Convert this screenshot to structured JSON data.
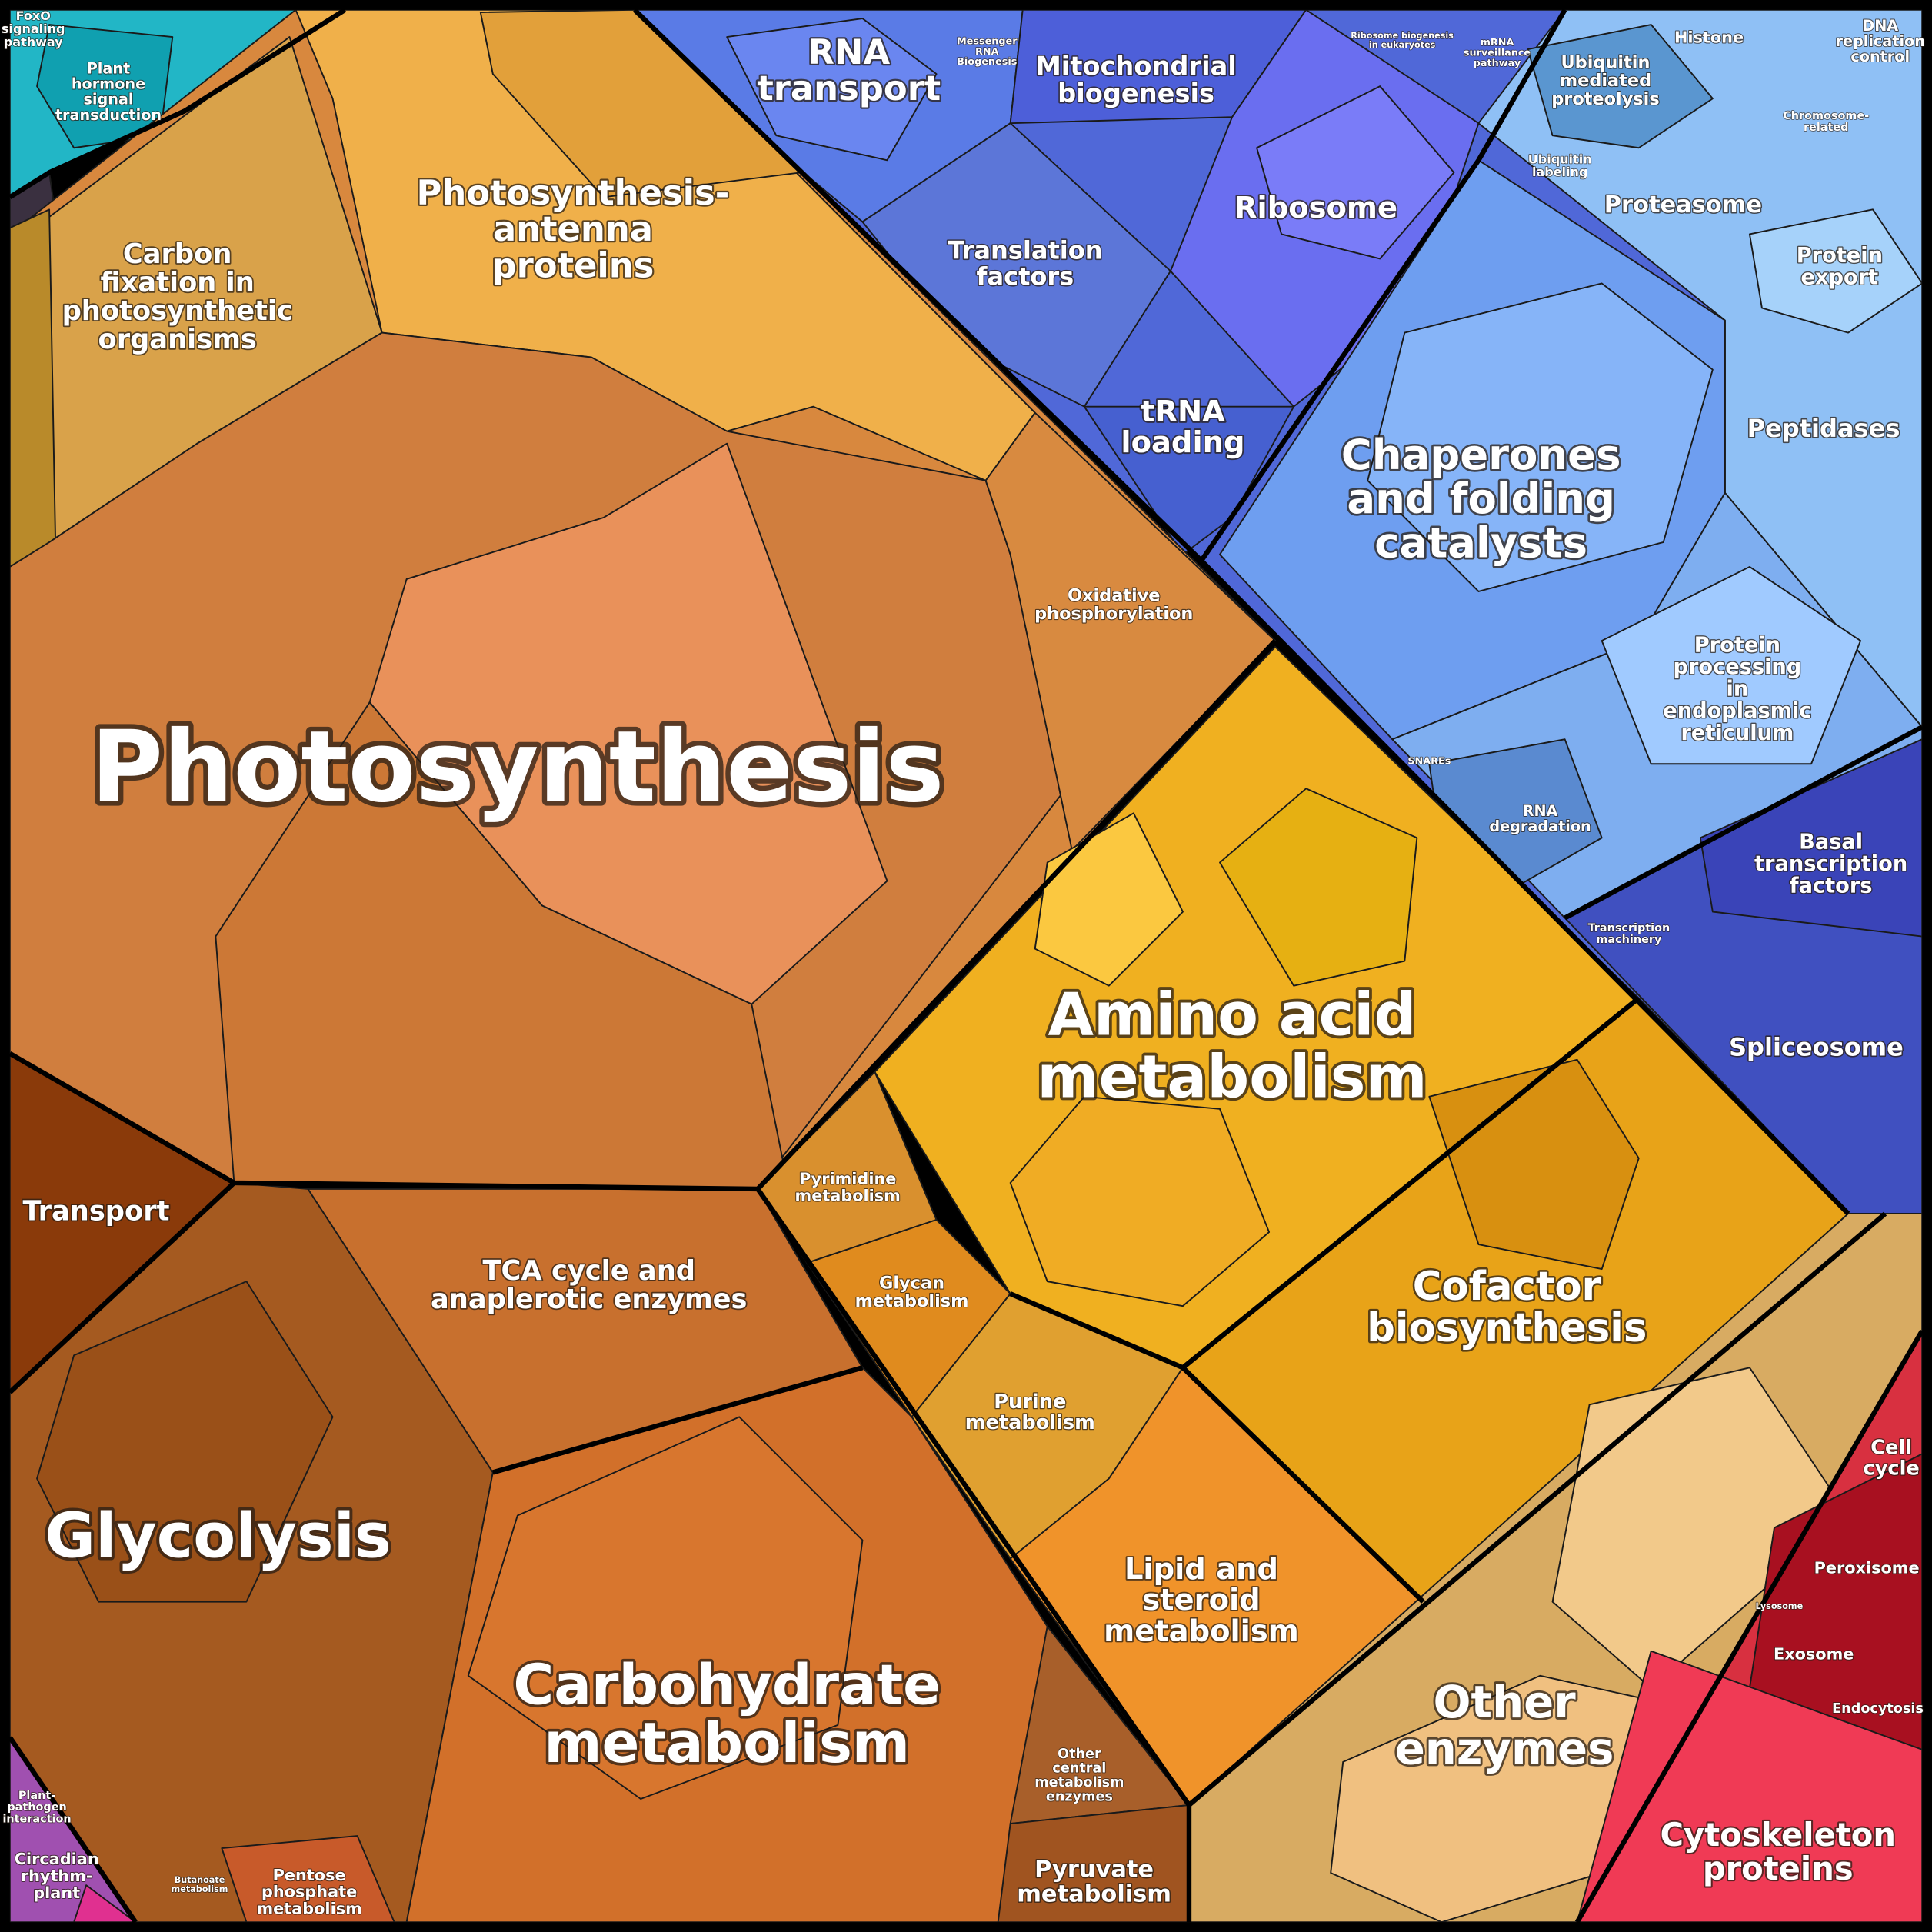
{
  "regions": [
    {
      "lines": [
        "Photosynthesis"
      ]
    },
    {
      "lines": [
        "Glycolysis"
      ]
    },
    {
      "lines": [
        "Carbohydrate",
        "metabolism"
      ]
    },
    {
      "lines": [
        "Amino acid",
        "metabolism"
      ]
    },
    {
      "lines": [
        "Chaperones",
        "and folding",
        "catalysts"
      ]
    },
    {
      "lines": [
        "Photosynthesis-",
        "antenna",
        "proteins"
      ]
    },
    {
      "lines": [
        "Carbon",
        "fixation in",
        "photosynthetic",
        "organisms"
      ]
    },
    {
      "lines": [
        "RNA",
        "transport"
      ]
    },
    {
      "lines": [
        "Mitochondrial",
        "biogenesis"
      ]
    },
    {
      "lines": [
        "Ribosome"
      ]
    },
    {
      "lines": [
        "Translation",
        "factors"
      ]
    },
    {
      "lines": [
        "tRNA",
        "loading"
      ]
    },
    {
      "lines": [
        "Ubiquitin",
        "mediated",
        "proteolysis"
      ]
    },
    {
      "lines": [
        "Proteasome"
      ]
    },
    {
      "lines": [
        "Protein",
        "export"
      ]
    },
    {
      "lines": [
        "Peptidases"
      ]
    },
    {
      "lines": [
        "Protein",
        "processing",
        "in",
        "endoplasmic",
        "reticulum"
      ]
    },
    {
      "lines": [
        "Basal",
        "transcription",
        "factors"
      ]
    },
    {
      "lines": [
        "Spliceosome"
      ]
    },
    {
      "lines": [
        "RNA",
        "degradation"
      ]
    },
    {
      "lines": [
        "Oxidative",
        "phosphorylation"
      ]
    },
    {
      "lines": [
        "Pyrimidine",
        "metabolism"
      ]
    },
    {
      "lines": [
        "Glycan",
        "metabolism"
      ]
    },
    {
      "lines": [
        "TCA cycle and",
        "anaplerotic enzymes"
      ]
    },
    {
      "lines": [
        "Purine",
        "metabolism"
      ]
    },
    {
      "lines": [
        "Cofactor",
        "biosynthesis"
      ]
    },
    {
      "lines": [
        "Lipid and",
        "steroid",
        "metabolism"
      ]
    },
    {
      "lines": [
        "Other",
        "enzymes"
      ]
    },
    {
      "lines": [
        "Transport"
      ]
    },
    {
      "lines": [
        "Other",
        "central",
        "metabolism",
        "enzymes"
      ]
    },
    {
      "lines": [
        "Pyruvate",
        "metabolism"
      ]
    },
    {
      "lines": [
        "Pentose",
        "phosphate",
        "metabolism"
      ]
    },
    {
      "lines": [
        "Cell",
        "cycle"
      ]
    },
    {
      "lines": [
        "Peroxisome"
      ]
    },
    {
      "lines": [
        "Lysosome"
      ]
    },
    {
      "lines": [
        "Exosome"
      ]
    },
    {
      "lines": [
        "Endocytosis"
      ]
    },
    {
      "lines": [
        "Cytoskeleton",
        "proteins"
      ]
    },
    {
      "lines": [
        "Circadian",
        "rhythm-",
        "plant"
      ]
    },
    {
      "lines": [
        "Plant-",
        "pathogen",
        "interaction"
      ]
    },
    {
      "lines": [
        "Plant",
        "hormone",
        "signal",
        "transduction"
      ]
    },
    {
      "lines": [
        "FoxO",
        "signaling",
        "pathway"
      ]
    },
    {
      "lines": [
        "Histone"
      ]
    },
    {
      "lines": [
        "DNA",
        "replication",
        "control"
      ]
    },
    {
      "lines": [
        "Chromosome-",
        "related"
      ]
    },
    {
      "lines": [
        "Ubiquitin",
        "labeling"
      ]
    },
    {
      "lines": [
        "Messenger",
        "RNA",
        "Biogenesis"
      ]
    },
    {
      "lines": [
        "Ribosome biogenesis",
        "in eukaryotes"
      ]
    },
    {
      "lines": [
        "mRNA",
        "surveillance",
        "pathway"
      ]
    },
    {
      "lines": [
        "Transcription",
        "machinery"
      ]
    },
    {
      "lines": [
        "SNAREs"
      ]
    },
    {
      "lines": [
        "Butanoate",
        "metabolism"
      ]
    }
  ]
}
